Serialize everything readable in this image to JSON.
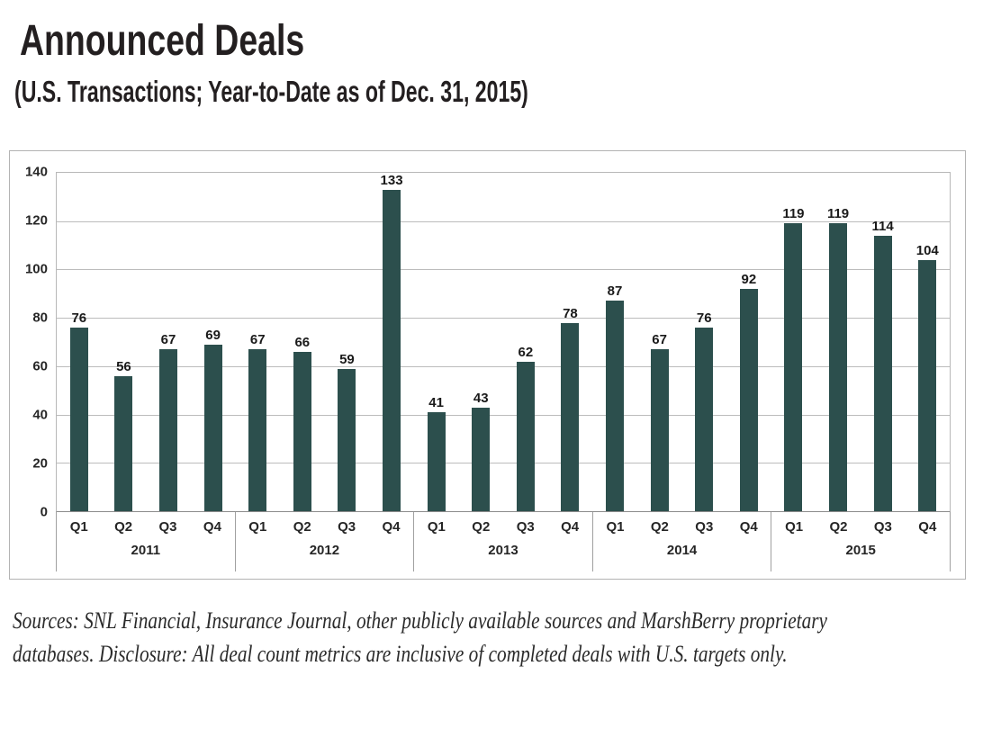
{
  "header": {
    "title": "Announced Deals",
    "subtitle": "(U.S. Transactions; Year-to-Date as of Dec. 31, 2015)"
  },
  "chart_data": {
    "type": "bar",
    "title": "Announced Deals",
    "subtitle": "(U.S. Transactions; Year-to-Date as of Dec. 31, 2015)",
    "xlabel": "",
    "ylabel": "",
    "ylim": [
      0,
      140
    ],
    "ytick_step": 20,
    "y_ticks": [
      0,
      20,
      40,
      60,
      80,
      100,
      120,
      140
    ],
    "grid": "horizontal",
    "legend": "none",
    "bar_color": "#2c4f4d",
    "quarters": [
      "Q1",
      "Q2",
      "Q3",
      "Q4"
    ],
    "groups": [
      {
        "year": "2011",
        "values": [
          76,
          56,
          67,
          69
        ]
      },
      {
        "year": "2012",
        "values": [
          67,
          66,
          59,
          133
        ]
      },
      {
        "year": "2013",
        "values": [
          41,
          43,
          62,
          78
        ]
      },
      {
        "year": "2014",
        "values": [
          87,
          67,
          76,
          92
        ]
      },
      {
        "year": "2015",
        "values": [
          119,
          119,
          114,
          104
        ]
      }
    ]
  },
  "footer": {
    "lines": [
      "Sources: SNL Financial, Insurance Journal, other publicly available sources and MarshBerry proprietary",
      "databases. Disclosure: All deal count metrics are inclusive of completed deals with U.S. targets only."
    ]
  },
  "colors": {
    "bar": "#2c4f4d",
    "gridline": "#bcbcbc",
    "axis_line": "#8c8c8c",
    "frame_border": "#b3b3b3",
    "text": "#231f20"
  }
}
